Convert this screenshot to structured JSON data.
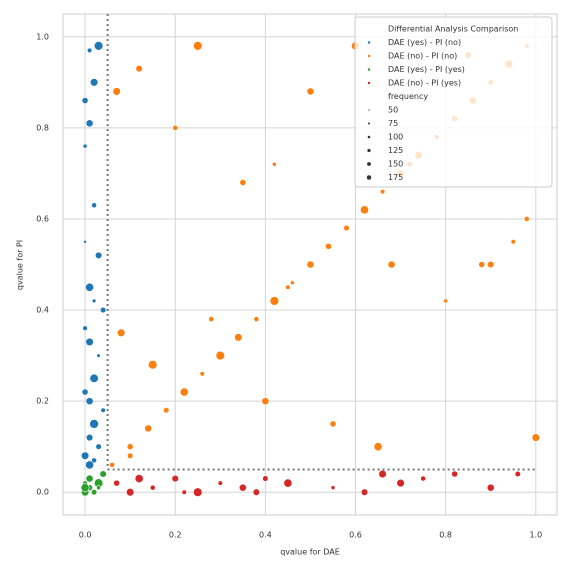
{
  "chart_data": {
    "type": "scatter",
    "x_label": "qvalue for DAE",
    "y_label": "qvalue for PI",
    "xlim": [
      -0.049,
      1.047
    ],
    "ylim": [
      -0.05,
      1.05
    ],
    "xticks": [
      {
        "value": 0,
        "label": "0.0"
      },
      0.2,
      0.4,
      0.6,
      0.8,
      {
        "value": 1,
        "label": "1.0"
      }
    ],
    "yticks": [
      {
        "value": 0,
        "label": "0.0"
      },
      0.2,
      0.4,
      0.6,
      0.8,
      {
        "value": 1,
        "label": "1.0"
      }
    ],
    "grid": true,
    "threshold_x": 0.05,
    "threshold_y": 0.05,
    "legend_title": "Differential Analysis Comparison",
    "legend_position": "upper right",
    "size_legend": {
      "title": "frequency",
      "values": [
        50,
        75,
        100,
        125,
        150,
        175
      ]
    },
    "series": [
      {
        "name": "DAE (yes)  - PI (no)",
        "color": "#1f77b4",
        "x": [
          0.0,
          0.01,
          0.02,
          0.03,
          0.0,
          0.01,
          0.02,
          0.0,
          0.03,
          0.01,
          0.02,
          0.04,
          0.0,
          0.01,
          0.03,
          0.02,
          0.0,
          0.01,
          0.04,
          0.02,
          0.01,
          0.03,
          0.0,
          0.02,
          0.01
        ],
        "values": [
          0.86,
          0.97,
          0.9,
          0.98,
          0.76,
          0.81,
          0.63,
          0.55,
          0.52,
          0.45,
          0.42,
          0.4,
          0.36,
          0.33,
          0.3,
          0.25,
          0.22,
          0.2,
          0.18,
          0.15,
          0.12,
          0.1,
          0.08,
          0.07,
          0.06
        ],
        "sizes": [
          120,
          90,
          150,
          170,
          80,
          140,
          100,
          60,
          130,
          160,
          75,
          110,
          95,
          150,
          70,
          165,
          120,
          140,
          90,
          175,
          130,
          110,
          150,
          100,
          160
        ]
      },
      {
        "name": "DAE (no)  - PI (no)",
        "color": "#ff7f0e",
        "x": [
          0.06,
          0.1,
          0.14,
          0.18,
          0.22,
          0.26,
          0.3,
          0.34,
          0.38,
          0.42,
          0.46,
          0.5,
          0.54,
          0.58,
          0.62,
          0.66,
          0.7,
          0.74,
          0.78,
          0.82,
          0.86,
          0.9,
          0.94,
          0.98,
          0.07,
          0.12,
          0.2,
          0.25,
          0.35,
          0.42,
          0.5,
          0.6,
          0.72,
          0.85,
          0.95,
          0.08,
          0.15,
          0.28,
          0.4,
          0.55,
          0.65,
          0.8,
          0.9,
          1.0,
          0.1,
          0.3,
          0.45,
          0.68,
          0.88,
          0.98
        ],
        "values": [
          0.06,
          0.1,
          0.14,
          0.18,
          0.22,
          0.26,
          0.3,
          0.34,
          0.38,
          0.42,
          0.46,
          0.5,
          0.54,
          0.58,
          0.62,
          0.66,
          0.7,
          0.74,
          0.78,
          0.82,
          0.86,
          0.9,
          0.94,
          0.98,
          0.88,
          0.93,
          0.8,
          0.98,
          0.68,
          0.72,
          0.88,
          0.98,
          0.72,
          0.96,
          0.55,
          0.35,
          0.28,
          0.38,
          0.2,
          0.15,
          0.1,
          0.42,
          0.5,
          0.12,
          0.08,
          0.3,
          0.45,
          0.5,
          0.5,
          0.6
        ],
        "sizes": [
          100,
          120,
          140,
          110,
          160,
          90,
          130,
          150,
          100,
          170,
          80,
          140,
          120,
          110,
          160,
          90,
          130,
          150,
          100,
          120,
          140,
          110,
          160,
          90,
          150,
          130,
          100,
          170,
          120,
          80,
          140,
          160,
          110,
          130,
          90,
          150,
          170,
          100,
          140,
          120,
          160,
          80,
          130,
          150,
          110,
          170,
          90,
          140,
          120,
          100
        ]
      },
      {
        "name": "DAE (yes) - PI (yes)",
        "color": "#2ca02c",
        "x": [
          0.0,
          0.01,
          0.02,
          0.03,
          0.0,
          0.01,
          0.04,
          0.02,
          0.0,
          0.03
        ],
        "values": [
          0.0,
          0.01,
          0.0,
          0.02,
          0.02,
          0.03,
          0.04,
          0.0,
          0.01,
          0.01
        ],
        "sizes": [
          150,
          120,
          100,
          170,
          90,
          140,
          130,
          110,
          160,
          80
        ]
      },
      {
        "name": "DAE (no)  - PI (yes)",
        "color": "#d62728",
        "x": [
          0.07,
          0.1,
          0.15,
          0.2,
          0.25,
          0.3,
          0.35,
          0.4,
          0.45,
          0.55,
          0.62,
          0.7,
          0.75,
          0.82,
          0.9,
          0.96,
          0.12,
          0.22,
          0.38,
          0.66
        ],
        "values": [
          0.02,
          0.0,
          0.01,
          0.03,
          0.0,
          0.02,
          0.01,
          0.03,
          0.02,
          0.01,
          0.0,
          0.02,
          0.03,
          0.04,
          0.01,
          0.04,
          0.03,
          0.0,
          0.0,
          0.04
        ],
        "sizes": [
          120,
          150,
          100,
          130,
          170,
          90,
          140,
          110,
          160,
          80,
          130,
          150,
          100,
          120,
          140,
          110,
          160,
          90,
          130,
          150
        ]
      }
    ]
  }
}
